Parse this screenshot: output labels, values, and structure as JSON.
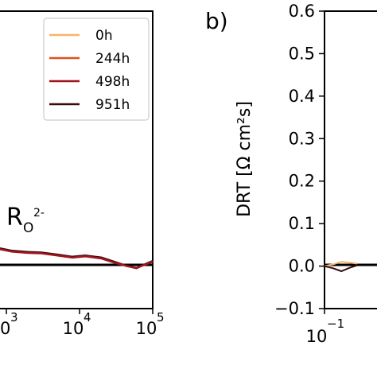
{
  "chart_data": [
    {
      "type": "line",
      "xscale": "log",
      "x_tick_labels": [
        "10",
        "10",
        "10"
      ],
      "x_tick_exponents": [
        "3",
        "4",
        "5"
      ],
      "x_ticks": [
        1000,
        10000,
        100000
      ],
      "xlim_visible": [
        300,
        100000
      ],
      "ylim": [
        -0.1,
        0.6
      ],
      "legend": {
        "location": "top-right",
        "entries": [
          {
            "name": "0h",
            "color": "#f7b46b"
          },
          {
            "name": "244h",
            "color": "#e2501b"
          },
          {
            "name": "498h",
            "color": "#a0161c"
          },
          {
            "name": "951h",
            "color": "#3a0a0e"
          }
        ]
      },
      "annotation": {
        "main": "R",
        "sub": "O",
        "sup": "2-"
      },
      "series": [
        {
          "name": "951h",
          "x": [
            300,
            500,
            800,
            1200,
            2000,
            3000,
            5000,
            8000,
            12000,
            20000,
            30000,
            45000,
            60000,
            80000,
            100000
          ],
          "y": [
            0.058,
            0.05,
            0.042,
            0.036,
            0.033,
            0.032,
            0.027,
            0.022,
            0.025,
            0.02,
            0.01,
            0.0,
            -0.005,
            0.005,
            0.012
          ]
        },
        {
          "name": "498h",
          "x": [
            300,
            500,
            800,
            1200,
            2000,
            3000,
            5000,
            8000,
            12000,
            20000,
            30000,
            45000,
            60000,
            80000,
            100000
          ],
          "y": [
            0.055,
            0.048,
            0.04,
            0.034,
            0.031,
            0.03,
            0.025,
            0.02,
            0.023,
            0.018,
            0.008,
            0.0,
            -0.004,
            0.004,
            0.01
          ]
        }
      ]
    },
    {
      "type": "line",
      "panel_label": "b)",
      "ylabel": "DRT [Ω cm²s]",
      "y_ticks": [
        "−0.1",
        "0.0",
        "0.1",
        "0.2",
        "0.3",
        "0.4",
        "0.5",
        "0.6"
      ],
      "y_tick_values": [
        -0.1,
        0.0,
        0.1,
        0.2,
        0.3,
        0.4,
        0.5,
        0.6
      ],
      "ylim": [
        -0.1,
        0.6
      ],
      "xscale": "log",
      "x_tick_labels": [
        "10"
      ],
      "x_tick_exponents": [
        "−1"
      ],
      "x_ticks": [
        0.1
      ],
      "series": [
        {
          "name": "0h",
          "x": [
            0.1,
            0.13,
            0.17,
            0.22,
            0.28
          ],
          "y": [
            0.0,
            0.004,
            0.01,
            0.008,
            0.006
          ]
        },
        {
          "name": "951h",
          "x": [
            0.1,
            0.13,
            0.17,
            0.22,
            0.28
          ],
          "y": [
            0.0,
            -0.005,
            -0.012,
            -0.004,
            0.002
          ]
        }
      ]
    }
  ]
}
